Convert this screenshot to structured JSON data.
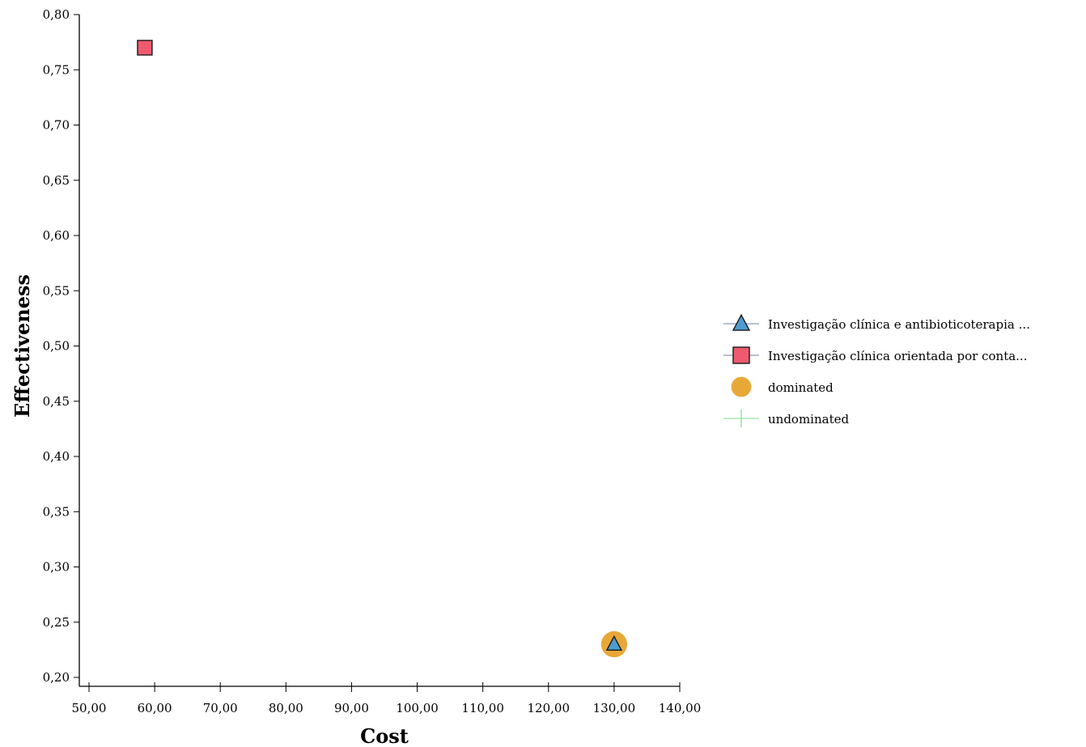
{
  "chart_data": {
    "type": "scatter",
    "title": "",
    "xlabel": "Cost",
    "ylabel": "Effectiveness",
    "xlim": [
      50,
      140
    ],
    "ylim": [
      0.2,
      0.8
    ],
    "x_ticks": [
      "50,00",
      "60,00",
      "70,00",
      "80,00",
      "90,00",
      "100,00",
      "110,00",
      "120,00",
      "130,00",
      "140,00"
    ],
    "y_ticks": [
      "0,20",
      "0,25",
      "0,30",
      "0,35",
      "0,40",
      "0,45",
      "0,50",
      "0,55",
      "0,60",
      "0,65",
      "0,70",
      "0,75",
      "0,80"
    ],
    "grid": false,
    "legend_position": "right",
    "series": [
      {
        "name": "Investigação clínica e antibioticoterapia ...",
        "marker": "triangle",
        "color": "#4f9bd0",
        "points": [
          {
            "x": 130.0,
            "y": 0.23
          }
        ]
      },
      {
        "name": "Investigação clínica orientada por conta...",
        "marker": "square",
        "color": "#f05a6e",
        "points": [
          {
            "x": 58.5,
            "y": 0.77
          }
        ]
      },
      {
        "name": "dominated",
        "marker": "circle",
        "color": "#e8a838",
        "points": [
          {
            "x": 130.0,
            "y": 0.23
          }
        ]
      },
      {
        "name": "undominated",
        "marker": "line",
        "color": "#7fd98a",
        "points": []
      }
    ]
  }
}
